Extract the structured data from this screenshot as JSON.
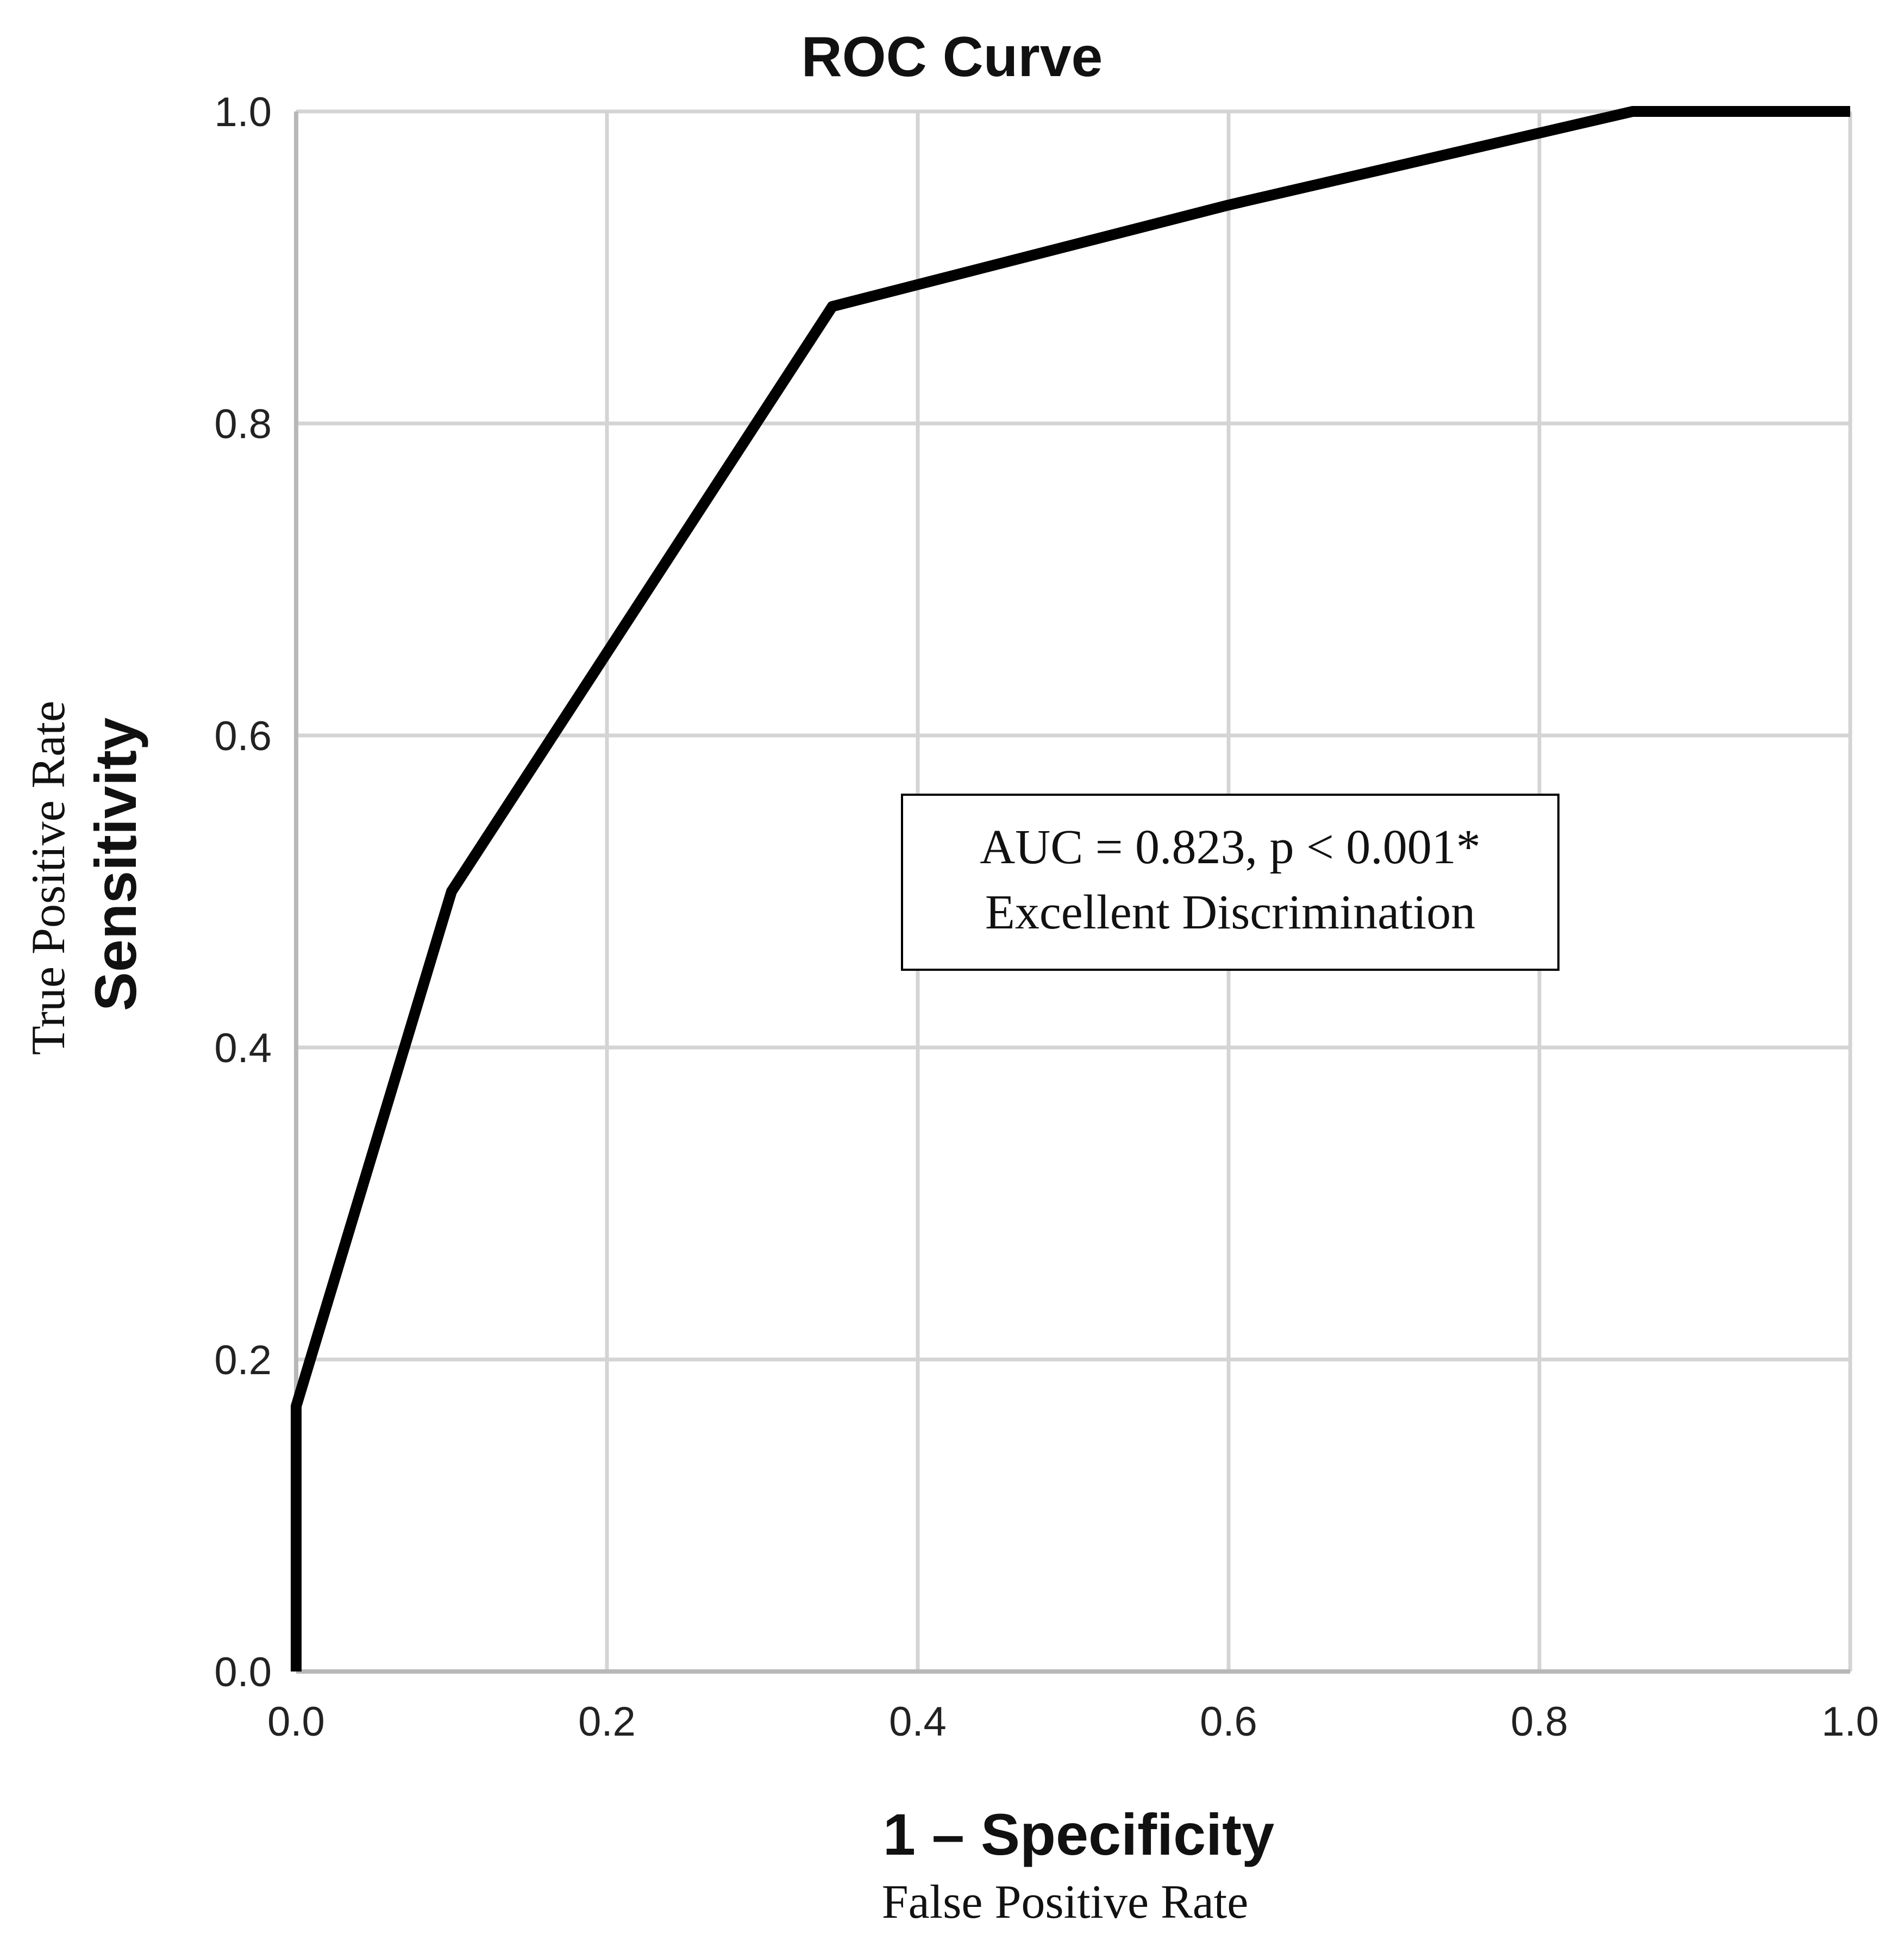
{
  "chart_data": {
    "type": "line",
    "title": "ROC Curve",
    "xlabel": "1 – Specificity",
    "xlabel_sub": "False Positive Rate",
    "ylabel": "Sensitivity",
    "ylabel_sub": "True Positive Rate",
    "xlim": [
      0,
      1
    ],
    "ylim": [
      0,
      1
    ],
    "x_ticks": [
      "0.0",
      "0.2",
      "0.4",
      "0.6",
      "0.8",
      "1.0"
    ],
    "y_ticks": [
      "0.0",
      "0.2",
      "0.4",
      "0.6",
      "0.8",
      "1.0"
    ],
    "grid": true,
    "series": [
      {
        "x": [
          0.0,
          0.0,
          0.1,
          0.345,
          0.6,
          0.86,
          1.0
        ],
        "y": [
          0.0,
          0.17,
          0.5,
          0.875,
          0.94,
          1.0,
          1.0
        ],
        "color": "#000000"
      }
    ],
    "annotation": {
      "line1": "AUC = 0.823, p < 0.001*",
      "line2": "Excellent Discrimination"
    }
  }
}
